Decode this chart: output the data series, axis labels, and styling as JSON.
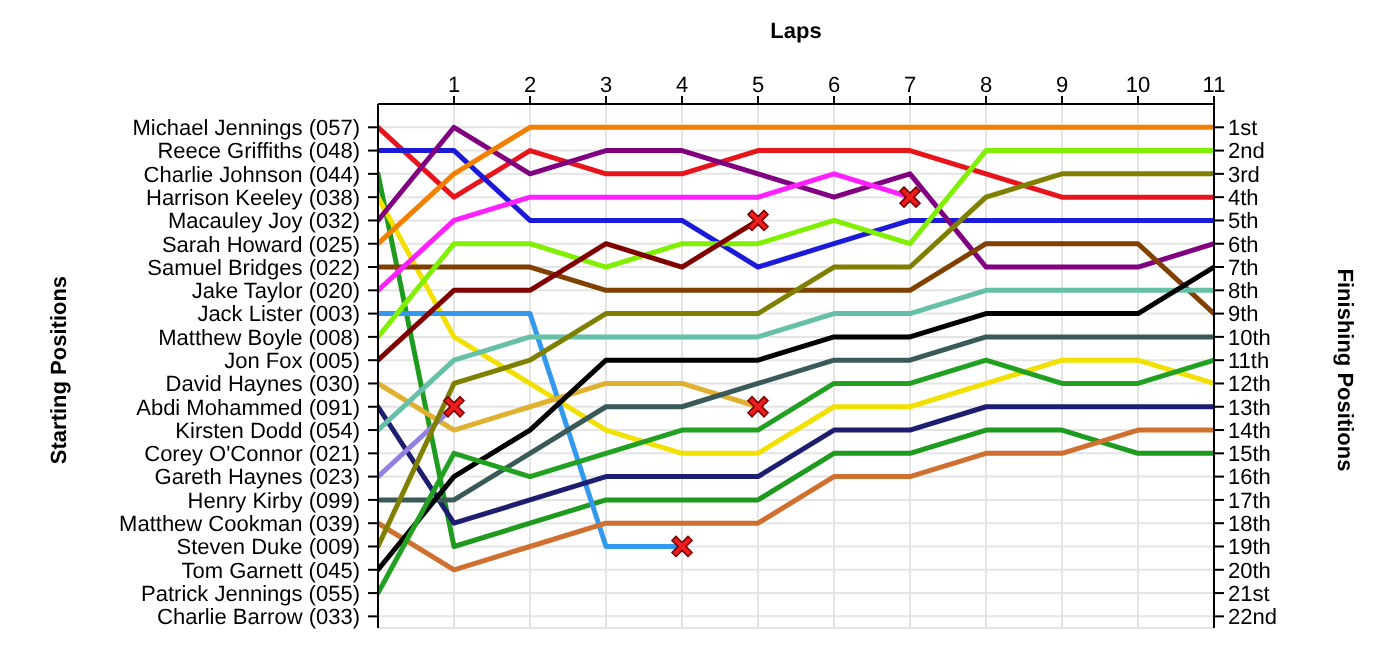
{
  "chart_data": {
    "type": "line",
    "xlabel": "Laps",
    "ylabel": "Finishing Positions",
    "grid": true,
    "marker": "none",
    "x": [
      0,
      1,
      2,
      3,
      4,
      5,
      6,
      7,
      8,
      9,
      10,
      11
    ],
    "xlim": [
      0,
      11
    ],
    "xticks": [
      1,
      2,
      3,
      4,
      5,
      6,
      7,
      8,
      9,
      10,
      11
    ],
    "ylim": [
      22.5,
      0
    ],
    "yticks": [
      {
        "value": 1,
        "label": "1st"
      },
      {
        "value": 2,
        "label": "2nd"
      },
      {
        "value": 3,
        "label": "3rd"
      },
      {
        "value": 4,
        "label": "4th"
      },
      {
        "value": 5,
        "label": "5th"
      },
      {
        "value": 6,
        "label": "6th"
      },
      {
        "value": 7,
        "label": "7th"
      },
      {
        "value": 8,
        "label": "8th"
      },
      {
        "value": 9,
        "label": "9th"
      },
      {
        "value": 10,
        "label": "10th"
      },
      {
        "value": 11,
        "label": "11th"
      },
      {
        "value": 12,
        "label": "12th"
      },
      {
        "value": 13,
        "label": "13th"
      },
      {
        "value": 14,
        "label": "14th"
      },
      {
        "value": 15,
        "label": "15th"
      },
      {
        "value": 16,
        "label": "16th"
      },
      {
        "value": 17,
        "label": "17th"
      },
      {
        "value": 18,
        "label": "18th"
      },
      {
        "value": 19,
        "label": "19th"
      },
      {
        "value": 20,
        "label": "20th"
      },
      {
        "value": 21,
        "label": "21st"
      },
      {
        "value": 22,
        "label": "22nd"
      }
    ],
    "annotations": [
      "Michael Jennings (057)",
      "Reece Griffiths (048)",
      "Charlie Johnson (044)",
      "Harrison Keeley (038)",
      "Macauley Joy (032)",
      "Sarah Howard (025)",
      "Samuel Bridges (022)",
      "Jake Taylor (020)",
      "Jack Lister (003)",
      "Matthew Boyle (008)",
      "Jon Fox (005)",
      "David Haynes (030)",
      "Abdi Mohammed (091)",
      "Kirsten Dodd (054)",
      "Corey O'Connor (021)",
      "Gareth Haynes (023)",
      "Henry Kirby (099)",
      "Matthew Cookman (039)",
      "Steven Duke (009)",
      "Tom Garnett (045)",
      "Patrick Jennings (055)",
      "Charlie Barrow (033)",
      "Starting Positions"
    ],
    "series": [
      {
        "color": "#e8141c",
        "values": [
          1,
          4,
          2,
          3,
          3,
          2,
          2,
          2,
          3,
          4,
          4,
          4
        ]
      },
      {
        "color": "#1a1ad8",
        "values": [
          2,
          2,
          5,
          5,
          5,
          7,
          6,
          5,
          5,
          5,
          5,
          5
        ]
      },
      {
        "color": "#1e9a1e",
        "values": [
          3,
          19,
          18,
          17,
          17,
          17,
          15,
          15,
          14,
          14,
          15,
          15
        ]
      },
      {
        "color": "#f2e000",
        "values": [
          4,
          10,
          12,
          14,
          15,
          15,
          13,
          13,
          12,
          11,
          11,
          12
        ]
      },
      {
        "color": "#800080",
        "values": [
          5,
          1,
          3,
          2,
          2,
          3,
          4,
          3,
          7,
          7,
          7,
          6
        ]
      },
      {
        "color": "#f28000",
        "values": [
          6,
          3,
          1,
          1,
          1,
          1,
          1,
          1,
          1,
          1,
          1,
          1
        ]
      },
      {
        "color": "#804000",
        "values": [
          7,
          7,
          7,
          8,
          8,
          8,
          8,
          8,
          6,
          6,
          6,
          9
        ]
      },
      {
        "color": "#ff20ff",
        "values": [
          8,
          5,
          4,
          4,
          4,
          4,
          3,
          4,
          null,
          null,
          null,
          null
        ]
      },
      {
        "color": "#3399ee",
        "values": [
          9,
          9,
          9,
          19,
          19,
          null,
          null,
          null,
          null,
          null,
          null,
          null
        ]
      },
      {
        "color": "#80f000",
        "values": [
          10,
          6,
          6,
          7,
          6,
          6,
          5,
          6,
          2,
          2,
          2,
          2
        ]
      },
      {
        "color": "#800000",
        "values": [
          11,
          8,
          8,
          6,
          7,
          5,
          null,
          null,
          null,
          null,
          null,
          null
        ]
      },
      {
        "color": "#e0b030",
        "values": [
          12,
          14,
          13,
          12,
          12,
          13,
          null,
          null,
          null,
          null,
          null,
          null
        ]
      },
      {
        "color": "#1e1e70",
        "values": [
          13,
          18,
          17,
          16,
          16,
          16,
          14,
          14,
          13,
          13,
          13,
          13
        ]
      },
      {
        "color": "#66c0a8",
        "values": [
          14,
          11,
          10,
          10,
          10,
          10,
          9,
          9,
          8,
          8,
          8,
          8
        ]
      },
      {
        "color": "#9380e0",
        "values": [
          16,
          13,
          null,
          null,
          null,
          null,
          null,
          null,
          null,
          null,
          null,
          null
        ]
      },
      {
        "color": "#3a5a5a",
        "values": [
          17,
          17,
          15,
          13,
          13,
          12,
          11,
          11,
          10,
          10,
          10,
          10
        ]
      },
      {
        "color": "#d07030",
        "values": [
          18,
          20,
          19,
          18,
          18,
          18,
          16,
          16,
          15,
          15,
          14,
          14
        ]
      },
      {
        "color": "#808000",
        "values": [
          19,
          12,
          11,
          9,
          9,
          9,
          7,
          7,
          4,
          3,
          3,
          3
        ]
      },
      {
        "color": "#000000",
        "values": [
          20,
          16,
          14,
          11,
          11,
          11,
          10,
          10,
          9,
          9,
          9,
          7
        ]
      },
      {
        "color": "#22a022",
        "values": [
          21,
          15,
          16,
          15,
          14,
          14,
          12,
          12,
          11,
          12,
          12,
          11
        ]
      },
      {
        "type": "scatter",
        "marker": "cross",
        "color": "#ee1c1c",
        "x": [
          1,
          4,
          5,
          5,
          7
        ],
        "values": [
          13,
          19,
          5,
          13,
          4
        ]
      }
    ]
  }
}
